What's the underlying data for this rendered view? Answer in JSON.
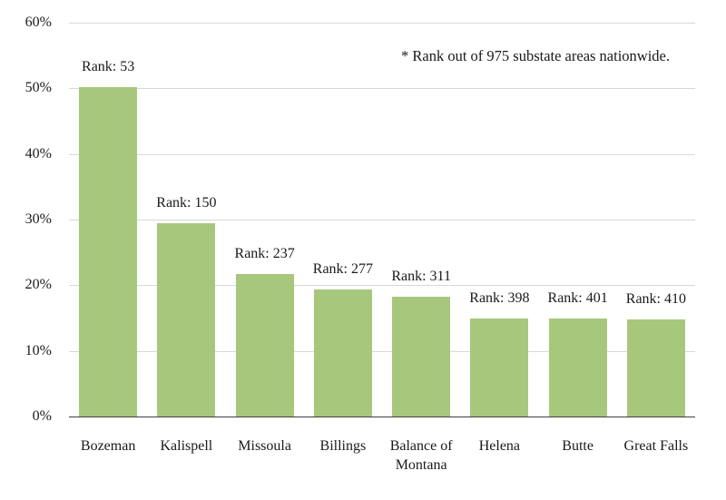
{
  "annotation": "* Rank out of 975 substate areas nationwide.",
  "chart_data": {
    "type": "bar",
    "title": "",
    "xlabel": "",
    "ylabel": "",
    "categories": [
      "Bozeman",
      "Kalispell",
      "Missoula",
      "Billings",
      "Balance of Montana",
      "Helena",
      "Butte",
      "Great Falls"
    ],
    "values": [
      50.2,
      29.5,
      21.7,
      19.4,
      18.2,
      15.0,
      14.9,
      14.8
    ],
    "bar_labels": [
      "Rank: 53",
      "Rank: 150",
      "Rank: 237",
      "Rank: 277",
      "Rank: 311",
      "Rank: 398",
      "Rank: 401",
      "Rank: 410"
    ],
    "ranks": [
      53,
      150,
      237,
      277,
      311,
      398,
      401,
      410
    ],
    "rank_annotation": "* Rank out of 975 substate areas nationwide.",
    "ylim": [
      0,
      60
    ],
    "ytick_values": [
      0,
      10,
      20,
      30,
      40,
      50,
      60
    ],
    "ytick_labels": [
      "0%",
      "10%",
      "20%",
      "30%",
      "40%",
      "50%",
      "60%"
    ],
    "grid": true,
    "legend": "none",
    "colors": {
      "bar_fill": "#a7c77d",
      "gridline": "#d9d9d9",
      "axis_line": "#404040",
      "text": "#1a1a1a"
    }
  }
}
